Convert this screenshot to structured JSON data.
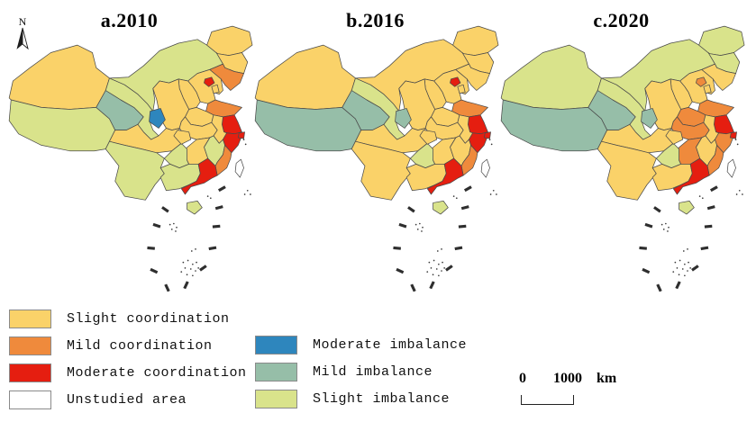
{
  "north_arrow": {
    "label": "N"
  },
  "categories": {
    "slight_coordination": {
      "label": "Slight coordination",
      "color": "#FAD269"
    },
    "mild_coordination": {
      "label": "Mild coordination",
      "color": "#EF8A3C"
    },
    "moderate_coordination": {
      "label": "Moderate coordination",
      "color": "#E51E10"
    },
    "unstudied": {
      "label": "Unstudied area",
      "color": "#FFFFFF"
    },
    "moderate_imbalance": {
      "label": "Moderate imbalance",
      "color": "#2E86BD"
    },
    "mild_imbalance": {
      "label": "Mild imbalance",
      "color": "#96BEA8"
    },
    "slight_imbalance": {
      "label": "Slight imbalance",
      "color": "#D9E38B"
    }
  },
  "legend": {
    "left_column": [
      "slight_coordination",
      "mild_coordination",
      "moderate_coordination",
      "unstudied"
    ],
    "right_column": [
      "moderate_imbalance",
      "mild_imbalance",
      "slight_imbalance"
    ]
  },
  "scale_bar": {
    "start": "0",
    "end": "1000",
    "unit": "km"
  },
  "maps": [
    {
      "id": "a",
      "title": "a.2010",
      "provinces": {
        "xinjiang": "slight_coordination",
        "inner_mongolia": "slight_imbalance",
        "heilongjiang": "slight_coordination",
        "jilin": "slight_coordination",
        "liaoning": "mild_coordination",
        "beijing": "moderate_coordination",
        "tianjin": "slight_coordination",
        "hebei": "slight_coordination",
        "shanxi": "slight_coordination",
        "shandong": "mild_coordination",
        "henan": "slight_coordination",
        "shaanxi": "slight_coordination",
        "ningxia": "moderate_imbalance",
        "gansu": "slight_imbalance",
        "qinghai": "mild_imbalance",
        "tibet": "slight_imbalance",
        "sichuan": "slight_coordination",
        "chongqing": "slight_coordination",
        "hubei": "slight_coordination",
        "anhui": "slight_coordination",
        "jiangsu": "moderate_coordination",
        "shanghai": "moderate_coordination",
        "zhejiang": "moderate_coordination",
        "jiangxi": "slight_imbalance",
        "hunan": "slight_coordination",
        "guizhou": "slight_imbalance",
        "yunnan": "slight_imbalance",
        "guangxi": "slight_imbalance",
        "guangdong": "moderate_coordination",
        "fujian": "mild_coordination",
        "hainan": "slight_imbalance",
        "taiwan": "unstudied"
      }
    },
    {
      "id": "b",
      "title": "b.2016",
      "provinces": {
        "xinjiang": "slight_coordination",
        "inner_mongolia": "slight_coordination",
        "heilongjiang": "slight_coordination",
        "jilin": "slight_coordination",
        "liaoning": "slight_coordination",
        "beijing": "moderate_coordination",
        "tianjin": "slight_coordination",
        "hebei": "slight_coordination",
        "shanxi": "slight_coordination",
        "shandong": "mild_coordination",
        "henan": "slight_coordination",
        "shaanxi": "slight_coordination",
        "ningxia": "mild_imbalance",
        "gansu": "slight_imbalance",
        "qinghai": "mild_imbalance",
        "tibet": "mild_imbalance",
        "sichuan": "slight_coordination",
        "chongqing": "slight_coordination",
        "hubei": "slight_coordination",
        "anhui": "slight_coordination",
        "jiangsu": "moderate_coordination",
        "shanghai": "moderate_coordination",
        "zhejiang": "moderate_coordination",
        "jiangxi": "slight_coordination",
        "hunan": "slight_coordination",
        "guizhou": "slight_imbalance",
        "yunnan": "slight_coordination",
        "guangxi": "slight_coordination",
        "guangdong": "moderate_coordination",
        "fujian": "mild_coordination",
        "hainan": "slight_imbalance",
        "taiwan": "unstudied"
      }
    },
    {
      "id": "c",
      "title": "c.2020",
      "provinces": {
        "xinjiang": "slight_imbalance",
        "inner_mongolia": "slight_imbalance",
        "heilongjiang": "slight_imbalance",
        "jilin": "slight_imbalance",
        "liaoning": "slight_coordination",
        "beijing": "mild_coordination",
        "tianjin": "slight_coordination",
        "hebei": "slight_coordination",
        "shanxi": "slight_coordination",
        "shandong": "mild_coordination",
        "henan": "mild_coordination",
        "shaanxi": "slight_coordination",
        "ningxia": "mild_imbalance",
        "gansu": "slight_imbalance",
        "qinghai": "mild_imbalance",
        "tibet": "mild_imbalance",
        "sichuan": "slight_coordination",
        "chongqing": "slight_coordination",
        "hubei": "mild_coordination",
        "anhui": "slight_coordination",
        "jiangsu": "moderate_coordination",
        "shanghai": "moderate_coordination",
        "zhejiang": "mild_coordination",
        "jiangxi": "slight_coordination",
        "hunan": "mild_coordination",
        "guizhou": "slight_imbalance",
        "yunnan": "slight_coordination",
        "guangxi": "slight_coordination",
        "guangdong": "moderate_coordination",
        "fujian": "mild_coordination",
        "hainan": "slight_imbalance",
        "taiwan": "unstudied"
      }
    }
  ]
}
